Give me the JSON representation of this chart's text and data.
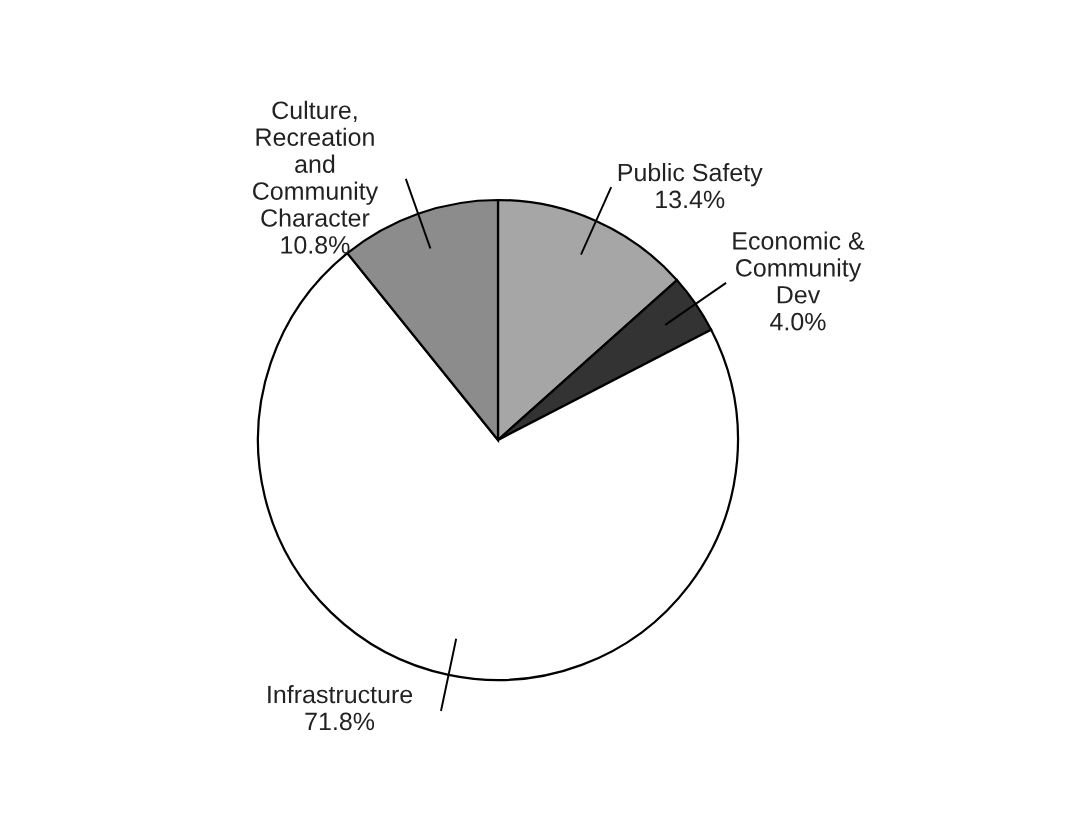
{
  "chart_data": {
    "type": "pie",
    "categories": [
      "Public Safety",
      "Economic &\nCommunity\nDev",
      "Infrastructure",
      "Culture,\nRecreation\nand\nCommunity\nCharacter"
    ],
    "values": [
      13.4,
      4.0,
      71.8,
      10.8
    ],
    "value_labels": [
      "13.4%",
      "4.0%",
      "71.8%",
      "10.8%"
    ],
    "colors": [
      "#a6a6a6",
      "#333333",
      "#ffffff",
      "#8c8c8c"
    ]
  }
}
